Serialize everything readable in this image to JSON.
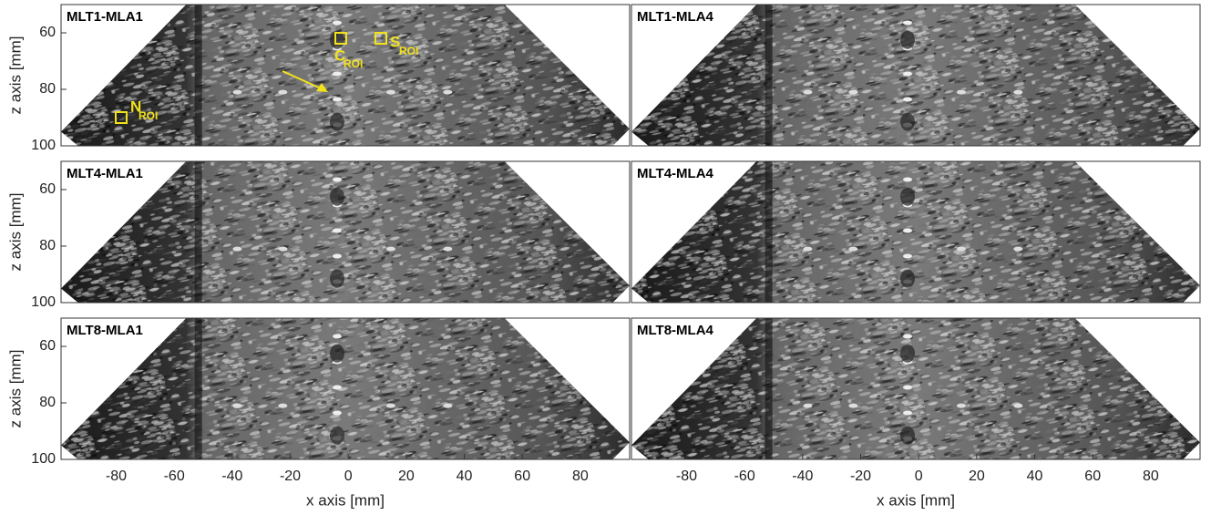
{
  "chart_data": [
    {
      "type": "image",
      "title": "MLT1-MLA1",
      "xlim": [
        -99,
        97
      ],
      "ylim": [
        50,
        100
      ],
      "y_reversed": true,
      "ylabel": "z axis [mm]",
      "yticks": [
        60,
        80,
        100
      ],
      "annotations": [
        {
          "text": "N",
          "subscript": "ROI"
        },
        {
          "text": "C",
          "subscript": "ROI"
        },
        {
          "text": "S",
          "subscript": "ROI"
        }
      ],
      "annotation_color": "#f2e21a"
    },
    {
      "type": "image",
      "title": "MLT1-MLA4",
      "xlim": [
        -99,
        97
      ],
      "ylim": [
        50,
        100
      ],
      "y_reversed": true
    },
    {
      "type": "image",
      "title": "MLT4-MLA1",
      "xlim": [
        -99,
        97
      ],
      "ylim": [
        50,
        100
      ],
      "y_reversed": true,
      "ylabel": "z axis [mm]",
      "yticks": [
        60,
        80,
        100
      ]
    },
    {
      "type": "image",
      "title": "MLT4-MLA4",
      "xlim": [
        -99,
        97
      ],
      "ylim": [
        50,
        100
      ],
      "y_reversed": true
    },
    {
      "type": "image",
      "title": "MLT8-MLA1",
      "xlim": [
        -99,
        97
      ],
      "ylim": [
        50,
        100
      ],
      "y_reversed": true,
      "ylabel": "z axis [mm]",
      "yticks": [
        60,
        80,
        100
      ],
      "xlabel": "x axis [mm]",
      "xticks": [
        -80,
        -60,
        -40,
        -20,
        0,
        20,
        40,
        60,
        80
      ]
    },
    {
      "type": "image",
      "title": "MLT8-MLA4",
      "xlim": [
        -99,
        97
      ],
      "ylim": [
        50,
        100
      ],
      "y_reversed": true,
      "xlabel": "x axis [mm]",
      "xticks": [
        -80,
        -60,
        -40,
        -20,
        0,
        20,
        40,
        60,
        80
      ]
    }
  ]
}
